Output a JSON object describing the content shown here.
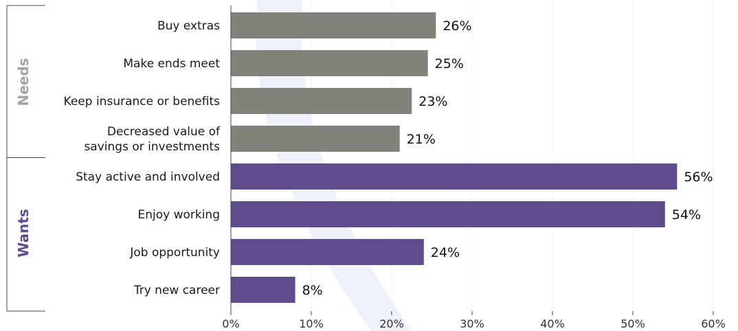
{
  "chart_data": {
    "type": "bar",
    "orientation": "horizontal",
    "categories": [
      "Buy extras",
      "Make ends meet",
      "Keep insurance or benefits",
      "Decreased value of savings or investments",
      "Stay active and involved",
      "Enjoy working",
      "Job opportunity",
      "Try new career"
    ],
    "category_lines": [
      [
        "Buy extras"
      ],
      [
        "Make ends meet"
      ],
      [
        "Keep insurance or benefits"
      ],
      [
        "Decreased value of",
        "savings or investments"
      ],
      [
        "Stay active and involved"
      ],
      [
        "Enjoy working"
      ],
      [
        "Job opportunity"
      ],
      [
        "Try new career"
      ]
    ],
    "values": [
      25.5,
      24.5,
      22.5,
      21.0,
      55.5,
      54.0,
      24.0,
      8.0
    ],
    "value_labels": [
      "26%",
      "25%",
      "23%",
      "21%",
      "56%",
      "54%",
      "24%",
      "8%"
    ],
    "groups": [
      {
        "name": "Needs",
        "start": 0,
        "end": 3,
        "color": "#81837b",
        "label_color": "#a4a4a4"
      },
      {
        "name": "Wants",
        "start": 4,
        "end": 7,
        "color": "#5f4c8c",
        "label_color": "#5f4c8c"
      }
    ],
    "xlim": [
      0,
      60
    ],
    "xticks": [
      0,
      10,
      20,
      30,
      40,
      50,
      60
    ],
    "xtick_labels": [
      "0%",
      "10%",
      "20%",
      "30%",
      "40%",
      "50%",
      "60%"
    ],
    "title": "",
    "xlabel": "",
    "ylabel": "",
    "grid": "vertical-light",
    "background_swoosh_color": "#eef0fb"
  }
}
